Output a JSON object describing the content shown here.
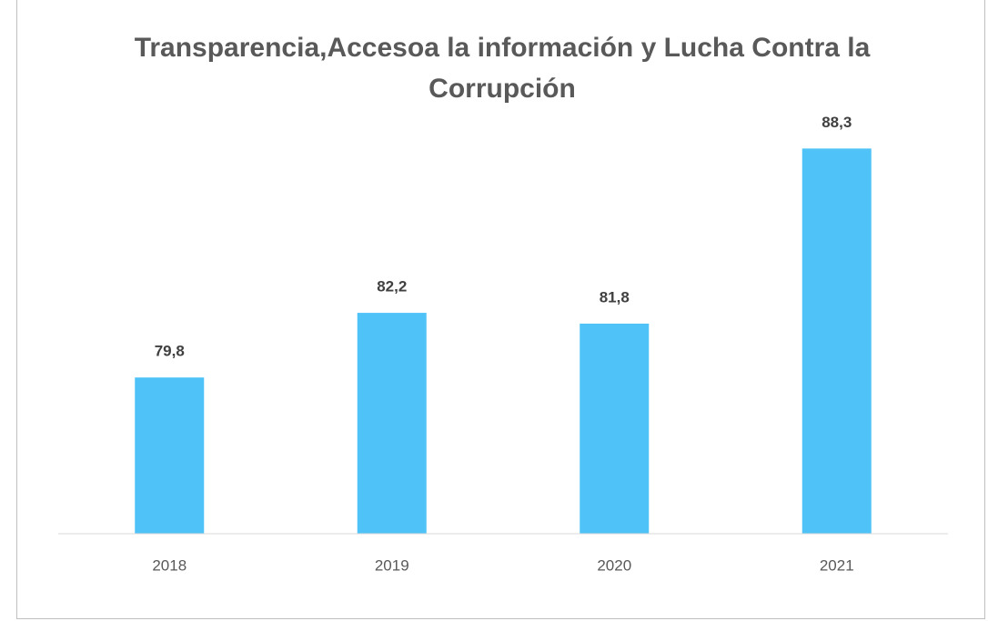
{
  "chart_data": {
    "type": "bar",
    "title": "Transparencia,Accesoa la información y Lucha Contra la Corrupción",
    "categories": [
      "2018",
      "2019",
      "2020",
      "2021"
    ],
    "values": [
      79.8,
      82.2,
      81.8,
      88.3
    ],
    "value_labels": [
      "79,8",
      "82,2",
      "81,8",
      "88,3"
    ],
    "color": "#4fc3f7",
    "ylim": [
      74,
      90
    ]
  }
}
